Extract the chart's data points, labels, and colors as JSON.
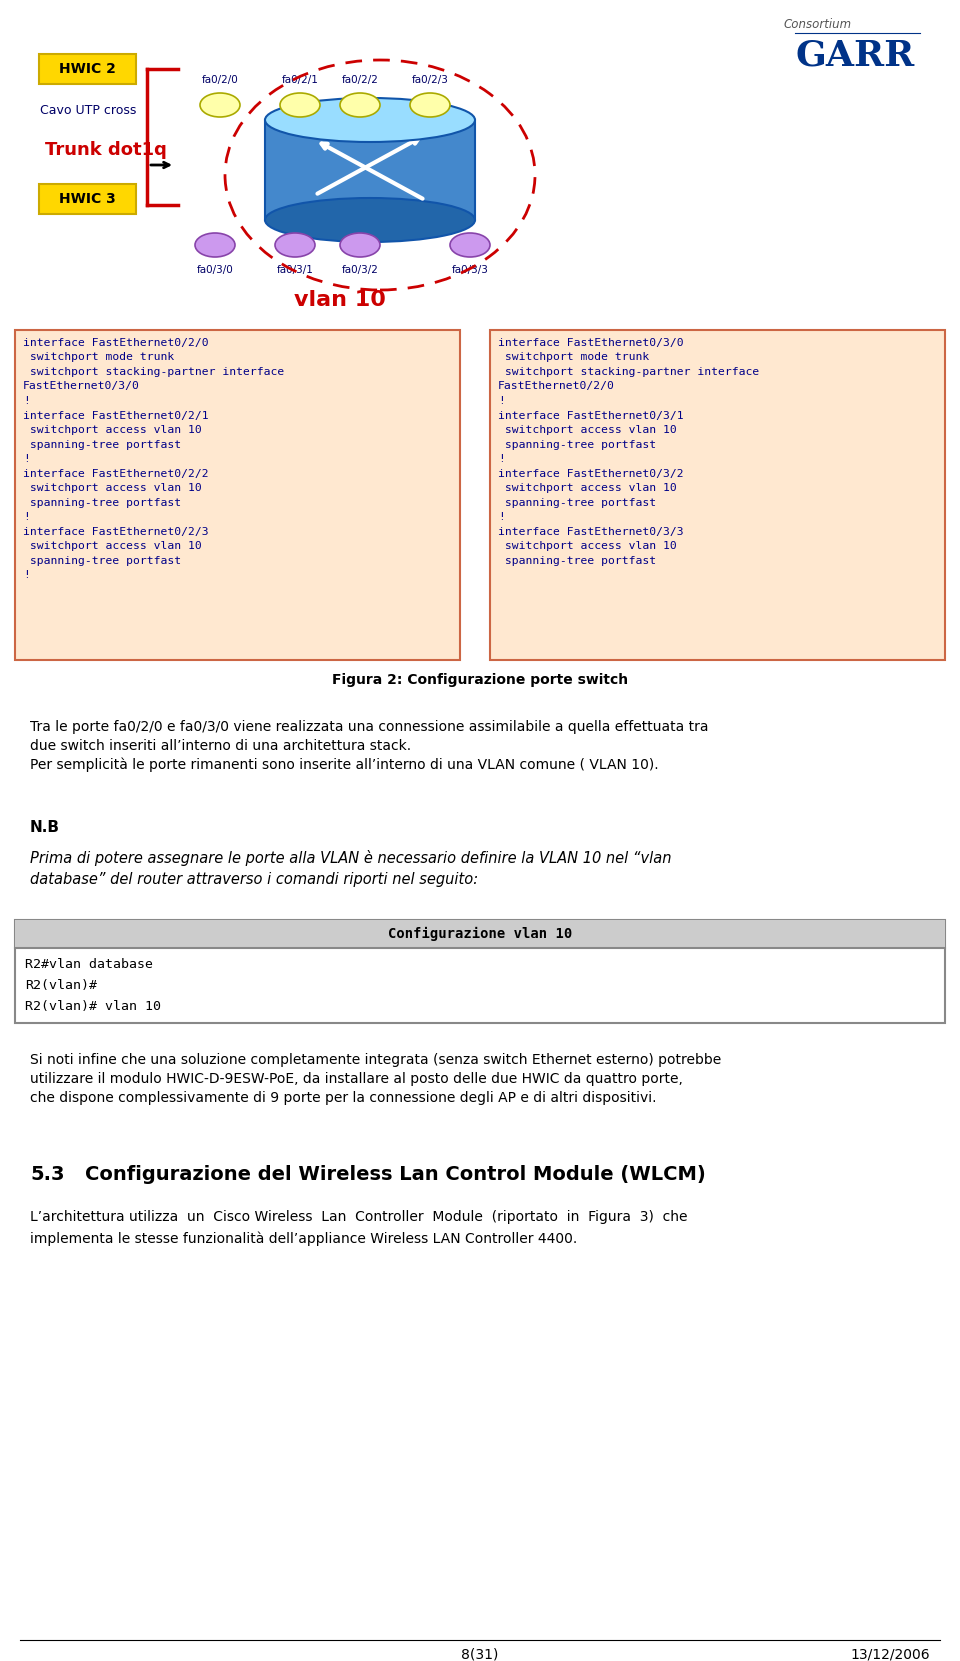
{
  "bg_color": "#ffffff",
  "hwic2_label": "HWIC 2",
  "hwic3_label": "HWIC 3",
  "hwic_bg": "#FFD700",
  "hwic_border": "#CCAA00",
  "cavo_text": "Cavo UTP cross",
  "trunk_text": "Trunk dot1q",
  "trunk_color": "#CC0000",
  "vlan_label": "vlan 10",
  "vlan_label_color": "#CC0000",
  "port_labels_top": [
    "fa0/2/0",
    "fa0/2/1",
    "fa0/2/2",
    "fa0/2/3"
  ],
  "port_labels_bottom": [
    "fa0/3/0",
    "fa0/3/1",
    "fa0/3/2",
    "fa0/3/3"
  ],
  "port_color_top": "#FFFFAA",
  "port_color_bottom": "#CC99EE",
  "port_text_color": "#000066",
  "router_body_color": "#5599DD",
  "router_top_color": "#88CCFF",
  "router_bottom_color": "#3377BB",
  "router_edge_color": "#1155AA",
  "dashed_border_color": "#CC0000",
  "code_box1_lines": [
    "interface FastEthernet0/2/0",
    " switchport mode trunk",
    " switchport stacking-partner interface",
    "FastEthernet0/3/0",
    "!",
    "interface FastEthernet0/2/1",
    " switchport access vlan 10",
    " spanning-tree portfast",
    "!",
    "interface FastEthernet0/2/2",
    " switchport access vlan 10",
    " spanning-tree portfast",
    "!",
    "interface FastEthernet0/2/3",
    " switchport access vlan 10",
    " spanning-tree portfast",
    "!"
  ],
  "code_box2_lines": [
    "interface FastEthernet0/3/0",
    " switchport mode trunk",
    " switchport stacking-partner interface",
    "FastEthernet0/2/0",
    "!",
    "interface FastEthernet0/3/1",
    " switchport access vlan 10",
    " spanning-tree portfast",
    "!",
    "interface FastEthernet0/3/2",
    " switchport access vlan 10",
    " spanning-tree portfast",
    "!",
    "interface FastEthernet0/3/3",
    " switchport access vlan 10",
    " spanning-tree portfast"
  ],
  "code_bg": "#FFE8D0",
  "code_border": "#CC6644",
  "code_text_color": "#000088",
  "figura_caption": "Figura 2: Configurazione porte switch",
  "para1_lines": [
    "Tra le porte fa0/2/0 e fa0/3/0 viene realizzata una connessione assimilabile a quella effettuata tra",
    "due switch inseriti all’interno di una architettura stack.",
    "Per semplicità le porte rimanenti sono inserite all’interno di una VLAN comune ( VLAN 10)."
  ],
  "nb_title": "N.B",
  "nb_italic_lines": [
    "Prima di potere assegnare le porte alla VLAN è necessario definire la VLAN 10 nel “vlan",
    "database” del router attraverso i comandi riporti nel seguito:"
  ],
  "config_title": "Configurazione vlan 10",
  "config_code_lines": [
    "R2#vlan database",
    "R2(vlan)#",
    "R2(vlan)# vlan 10"
  ],
  "config_header_bg": "#CCCCCC",
  "config_box_bg": "#FFFFFF",
  "config_box_border": "#888888",
  "para2_lines": [
    "Si noti infine che una soluzione completamente integrata (senza switch Ethernet esterno) potrebbe",
    "utilizzare il modulo HWIC-D-9ESW-PoE, da installare al posto delle due HWIC da quattro porte,",
    "che dispone complessivamente di 9 porte per la connessione degli AP e di altri dispositivi."
  ],
  "section_num": "5.3",
  "section_title_sc": "Configurazione del Wireless Lan Control Module (WLCM)",
  "para3_lines": [
    "L’architettura utilizza  un  Cisco Wireless  Lan  Controller  Module  (riportato  in  Figura  3)  che",
    "implementa le stesse funzionalità dell’appliance Wireless LAN Controller 4400."
  ],
  "footer_left": "8(31)",
  "footer_right": "13/12/2006",
  "text_color": "#000000",
  "blue_dark": "#000066",
  "garr_consortium": "Consortium",
  "garr_name": "GARR",
  "garr_color": "#003388"
}
